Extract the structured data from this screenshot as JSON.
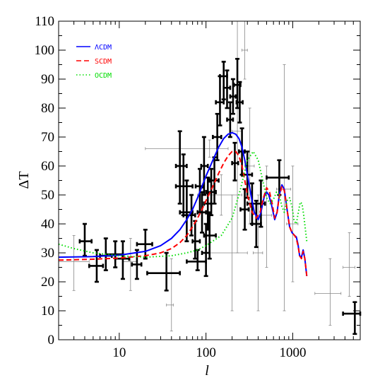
{
  "chart_data": {
    "type": "scatter",
    "xlabel": "l",
    "ylabel": "ΔT",
    "x_scale": "log",
    "xlim": [
      2,
      6000
    ],
    "ylim": [
      0,
      110
    ],
    "x_ticks": [
      10,
      100,
      1000
    ],
    "x_tick_labels": [
      "10",
      "100",
      "1000"
    ],
    "y_ticks": [
      0,
      10,
      20,
      30,
      40,
      50,
      60,
      70,
      80,
      90,
      100,
      110
    ],
    "y_tick_labels": [
      "0",
      "10",
      "20",
      "30",
      "40",
      "50",
      "60",
      "70",
      "80",
      "90",
      "100",
      "110"
    ],
    "grid": false,
    "legend_position": "top-left",
    "series": [
      {
        "name": "ΛCDM",
        "style": "solid",
        "color": "#0000ff",
        "points": [
          [
            2,
            28.5
          ],
          [
            5,
            28.7
          ],
          [
            10,
            29.2
          ],
          [
            20,
            30.5
          ],
          [
            30,
            32.5
          ],
          [
            40,
            35
          ],
          [
            50,
            38
          ],
          [
            60,
            41.5
          ],
          [
            70,
            45
          ],
          [
            80,
            49
          ],
          [
            90,
            53
          ],
          [
            100,
            56.5
          ],
          [
            120,
            62
          ],
          [
            140,
            66.5
          ],
          [
            160,
            69.5
          ],
          [
            180,
            71
          ],
          [
            200,
            71.5
          ],
          [
            220,
            71
          ],
          [
            240,
            69.5
          ],
          [
            260,
            66.5
          ],
          [
            280,
            62
          ],
          [
            300,
            57
          ],
          [
            330,
            50
          ],
          [
            360,
            44
          ],
          [
            400,
            41.5
          ],
          [
            430,
            44
          ],
          [
            470,
            49.5
          ],
          [
            500,
            51
          ],
          [
            530,
            50
          ],
          [
            570,
            46.5
          ],
          [
            620,
            41.5
          ],
          [
            660,
            44
          ],
          [
            700,
            50
          ],
          [
            750,
            53.5
          ],
          [
            800,
            52
          ],
          [
            860,
            45
          ],
          [
            920,
            39
          ],
          [
            980,
            37
          ],
          [
            1050,
            36
          ],
          [
            1100,
            35.5
          ],
          [
            1150,
            33
          ],
          [
            1200,
            29
          ],
          [
            1260,
            28.5
          ],
          [
            1320,
            31
          ],
          [
            1380,
            28
          ],
          [
            1450,
            22
          ]
        ]
      },
      {
        "name": "SCDM",
        "style": "dashed",
        "color": "#ff0000",
        "points": [
          [
            2,
            27.5
          ],
          [
            5,
            27.8
          ],
          [
            10,
            28.2
          ],
          [
            20,
            29
          ],
          [
            30,
            30
          ],
          [
            40,
            31.5
          ],
          [
            50,
            33.5
          ],
          [
            60,
            36
          ],
          [
            70,
            39
          ],
          [
            80,
            42
          ],
          [
            90,
            45
          ],
          [
            100,
            48
          ],
          [
            120,
            53
          ],
          [
            140,
            57.5
          ],
          [
            160,
            61
          ],
          [
            180,
            63.5
          ],
          [
            200,
            65
          ],
          [
            220,
            65
          ],
          [
            240,
            63.5
          ],
          [
            260,
            60
          ],
          [
            280,
            55
          ],
          [
            300,
            50
          ],
          [
            340,
            44
          ],
          [
            380,
            42
          ],
          [
            420,
            44
          ],
          [
            460,
            49
          ],
          [
            500,
            52.5
          ],
          [
            540,
            51
          ],
          [
            580,
            47
          ],
          [
            620,
            42
          ],
          [
            660,
            44
          ],
          [
            700,
            49.5
          ],
          [
            750,
            53
          ],
          [
            800,
            51.5
          ],
          [
            860,
            45
          ],
          [
            920,
            39
          ],
          [
            980,
            37
          ],
          [
            1050,
            36
          ],
          [
            1100,
            35
          ],
          [
            1150,
            32.5
          ],
          [
            1200,
            29
          ],
          [
            1260,
            28
          ],
          [
            1320,
            30.5
          ],
          [
            1380,
            28
          ],
          [
            1450,
            22
          ]
        ]
      },
      {
        "name": "OCDM",
        "style": "dotted",
        "color": "#00dd00",
        "points": [
          [
            2,
            33
          ],
          [
            3,
            31.5
          ],
          [
            5,
            30
          ],
          [
            10,
            29
          ],
          [
            20,
            28.5
          ],
          [
            40,
            29
          ],
          [
            60,
            30
          ],
          [
            80,
            31
          ],
          [
            100,
            32.5
          ],
          [
            150,
            36
          ],
          [
            200,
            42
          ],
          [
            250,
            52
          ],
          [
            300,
            62
          ],
          [
            350,
            65
          ],
          [
            400,
            62
          ],
          [
            450,
            55
          ],
          [
            500,
            49
          ],
          [
            550,
            47
          ],
          [
            600,
            48.5
          ],
          [
            650,
            51
          ],
          [
            700,
            50
          ],
          [
            750,
            46
          ],
          [
            800,
            44
          ],
          [
            860,
            48
          ],
          [
            920,
            49
          ],
          [
            980,
            46
          ],
          [
            1040,
            41
          ],
          [
            1100,
            40
          ],
          [
            1160,
            44
          ],
          [
            1220,
            47.5
          ],
          [
            1280,
            47
          ],
          [
            1340,
            43
          ],
          [
            1400,
            38
          ],
          [
            1450,
            34
          ]
        ]
      }
    ],
    "data_points": [
      {
        "x": 3,
        "y": 27,
        "xerr": [
          2,
          4.5
        ],
        "yerr": [
          17,
          36
        ],
        "weight": "thin"
      },
      {
        "x": 4,
        "y": 34,
        "xerr": [
          3.5,
          4.8
        ],
        "yerr": [
          29,
          40
        ],
        "weight": "bold"
      },
      {
        "x": 5.5,
        "y": 25.5,
        "xerr": [
          4.5,
          6.5
        ],
        "yerr": [
          20,
          31
        ],
        "weight": "bold"
      },
      {
        "x": 7,
        "y": 29,
        "xerr": [
          6,
          8.2
        ],
        "yerr": [
          24,
          35
        ],
        "weight": "bold"
      },
      {
        "x": 9,
        "y": 29.5,
        "xerr": [
          7,
          11
        ],
        "yerr": [
          25,
          34
        ],
        "weight": "bold"
      },
      {
        "x": 11,
        "y": 28,
        "xerr": [
          9,
          13
        ],
        "yerr": [
          21,
          34
        ],
        "weight": "bold"
      },
      {
        "x": 13.5,
        "y": 27,
        "xerr": [
          11,
          16
        ],
        "yerr": [
          17,
          35
        ],
        "weight": "thin"
      },
      {
        "x": 16,
        "y": 26,
        "xerr": [
          14,
          18
        ],
        "yerr": [
          21,
          31
        ],
        "weight": "bold"
      },
      {
        "x": 20,
        "y": 33,
        "xerr": [
          16,
          24
        ],
        "yerr": [
          28,
          38
        ],
        "weight": "bold"
      },
      {
        "x": 35,
        "y": 23,
        "xerr": [
          21,
          50
        ],
        "yerr": [
          17,
          30
        ],
        "weight": "bold"
      },
      {
        "x": 40,
        "y": 12,
        "xerr": [
          35,
          42
        ],
        "yerr": [
          3,
          28
        ],
        "weight": "thin"
      },
      {
        "x": 50,
        "y": 60,
        "xerr": [
          45,
          60
        ],
        "yerr": [
          47,
          72
        ],
        "weight": "bold"
      },
      {
        "x": 55,
        "y": 53,
        "xerr": [
          45,
          70
        ],
        "yerr": [
          43,
          64
        ],
        "weight": "bold"
      },
      {
        "x": 60,
        "y": 44,
        "xerr": [
          50,
          70
        ],
        "yerr": [
          34,
          55
        ],
        "weight": "bold"
      },
      {
        "x": 68,
        "y": 43,
        "xerr": [
          55,
          75
        ],
        "yerr": [
          36,
          50
        ],
        "weight": "bold"
      },
      {
        "x": 75,
        "y": 34,
        "xerr": [
          70,
          85
        ],
        "yerr": [
          28,
          41
        ],
        "weight": "bold"
      },
      {
        "x": 80,
        "y": 27,
        "xerr": [
          60,
          100
        ],
        "yerr": [
          24,
          31
        ],
        "weight": "bold"
      },
      {
        "x": 85,
        "y": 53,
        "xerr": [
          76,
          92
        ],
        "yerr": [
          44,
          59
        ],
        "weight": "bold"
      },
      {
        "x": 90,
        "y": 44,
        "xerr": [
          80,
          100
        ],
        "yerr": [
          37,
          51
        ],
        "weight": "bold"
      },
      {
        "x": 95,
        "y": 60,
        "xerr": [
          88,
          105
        ],
        "yerr": [
          50,
          70
        ],
        "weight": "bold"
      },
      {
        "x": 100,
        "y": 30,
        "xerr": [
          90,
          110
        ],
        "yerr": [
          22,
          40
        ],
        "weight": "bold"
      },
      {
        "x": 105,
        "y": 47,
        "xerr": [
          95,
          115
        ],
        "yerr": [
          38,
          56
        ],
        "weight": "bold"
      },
      {
        "x": 110,
        "y": 36,
        "xerr": [
          95,
          130
        ],
        "yerr": [
          28,
          44
        ],
        "weight": "bold"
      },
      {
        "x": 115,
        "y": 51,
        "xerr": [
          100,
          130
        ],
        "yerr": [
          43,
          59
        ],
        "weight": "bold"
      },
      {
        "x": 125,
        "y": 55,
        "xerr": [
          110,
          140
        ],
        "yerr": [
          47,
          63
        ],
        "weight": "bold"
      },
      {
        "x": 135,
        "y": 70,
        "xerr": [
          120,
          150
        ],
        "yerr": [
          62,
          78
        ],
        "weight": "bold"
      },
      {
        "x": 145,
        "y": 82,
        "xerr": [
          130,
          160
        ],
        "yerr": [
          74,
          91
        ],
        "weight": "bold"
      },
      {
        "x": 160,
        "y": 91,
        "xerr": [
          145,
          175
        ],
        "yerr": [
          83,
          96
        ],
        "weight": "bold"
      },
      {
        "x": 175,
        "y": 87,
        "xerr": [
          160,
          190
        ],
        "yerr": [
          80,
          93
        ],
        "weight": "bold"
      },
      {
        "x": 190,
        "y": 76,
        "xerr": [
          175,
          205
        ],
        "yerr": [
          70,
          82
        ],
        "weight": "bold"
      },
      {
        "x": 205,
        "y": 84,
        "xerr": [
          190,
          220
        ],
        "yerr": [
          78,
          90
        ],
        "weight": "bold"
      },
      {
        "x": 215,
        "y": 61,
        "xerr": [
          200,
          235
        ],
        "yerr": [
          55,
          68
        ],
        "weight": "bold"
      },
      {
        "x": 230,
        "y": 88,
        "xerr": [
          210,
          250
        ],
        "yerr": [
          80,
          97
        ],
        "weight": "bold"
      },
      {
        "x": 245,
        "y": 82,
        "xerr": [
          225,
          265
        ],
        "yerr": [
          75,
          89
        ],
        "weight": "bold"
      },
      {
        "x": 260,
        "y": 65,
        "xerr": [
          240,
          280
        ],
        "yerr": [
          57,
          73
        ],
        "weight": "bold"
      },
      {
        "x": 280,
        "y": 45,
        "xerr": [
          250,
          310
        ],
        "yerr": [
          38,
          52
        ],
        "weight": "bold"
      },
      {
        "x": 300,
        "y": 57,
        "xerr": [
          260,
          340
        ],
        "yerr": [
          49,
          65
        ],
        "weight": "bold"
      },
      {
        "x": 340,
        "y": 47,
        "xerr": [
          300,
          380
        ],
        "yerr": [
          40,
          54
        ],
        "weight": "bold"
      },
      {
        "x": 380,
        "y": 40,
        "xerr": [
          340,
          430
        ],
        "yerr": [
          32,
          48
        ],
        "weight": "bold"
      },
      {
        "x": 430,
        "y": 47,
        "xerr": [
          380,
          480
        ],
        "yerr": [
          39,
          55
        ],
        "weight": "bold"
      },
      {
        "x": 700,
        "y": 56,
        "xerr": [
          500,
          900
        ],
        "yerr": [
          50,
          62
        ],
        "weight": "bold"
      },
      {
        "x": 110,
        "y": 66,
        "xerr": [
          20,
          180
        ],
        "yerr": [
          63,
          69
        ],
        "weight": "thin"
      },
      {
        "x": 150,
        "y": 50,
        "xerr": [
          80,
          260
        ],
        "yerr": [
          43,
          57
        ],
        "weight": "thin"
      },
      {
        "x": 200,
        "y": 30,
        "xerr": [
          100,
          300
        ],
        "yerr": [
          10,
          50
        ],
        "weight": "thin"
      },
      {
        "x": 230,
        "y": 72,
        "xerr": [
          200,
          260
        ],
        "yerr": [
          30,
          110
        ],
        "weight": "thin"
      },
      {
        "x": 280,
        "y": 100,
        "xerr": [
          260,
          300
        ],
        "yerr": [
          90,
          110
        ],
        "weight": "thin"
      },
      {
        "x": 320,
        "y": 60,
        "xerr": [
          280,
          360
        ],
        "yerr": [
          40,
          80
        ],
        "weight": "thin"
      },
      {
        "x": 400,
        "y": 30,
        "xerr": [
          350,
          450
        ],
        "yerr": [
          10,
          50
        ],
        "weight": "thin"
      },
      {
        "x": 500,
        "y": 43,
        "xerr": [
          430,
          570
        ],
        "yerr": [
          25,
          60
        ],
        "weight": "thin"
      },
      {
        "x": 800,
        "y": 52,
        "xerr": [
          650,
          950
        ],
        "yerr": [
          10,
          95
        ],
        "weight": "thin"
      },
      {
        "x": 1000,
        "y": 40,
        "xerr": [
          850,
          1150
        ],
        "yerr": [
          20,
          60
        ],
        "weight": "thin"
      },
      {
        "x": 2700,
        "y": 16,
        "xerr": [
          1800,
          3600
        ],
        "yerr": [
          5,
          28
        ],
        "weight": "thin"
      },
      {
        "x": 4500,
        "y": 25,
        "xerr": [
          3800,
          5200
        ],
        "yerr": [
          15,
          37
        ],
        "weight": "thin"
      },
      {
        "x": 5200,
        "y": 9,
        "xerr": [
          3800,
          6000
        ],
        "yerr": [
          2,
          13
        ],
        "weight": "bold"
      }
    ]
  }
}
